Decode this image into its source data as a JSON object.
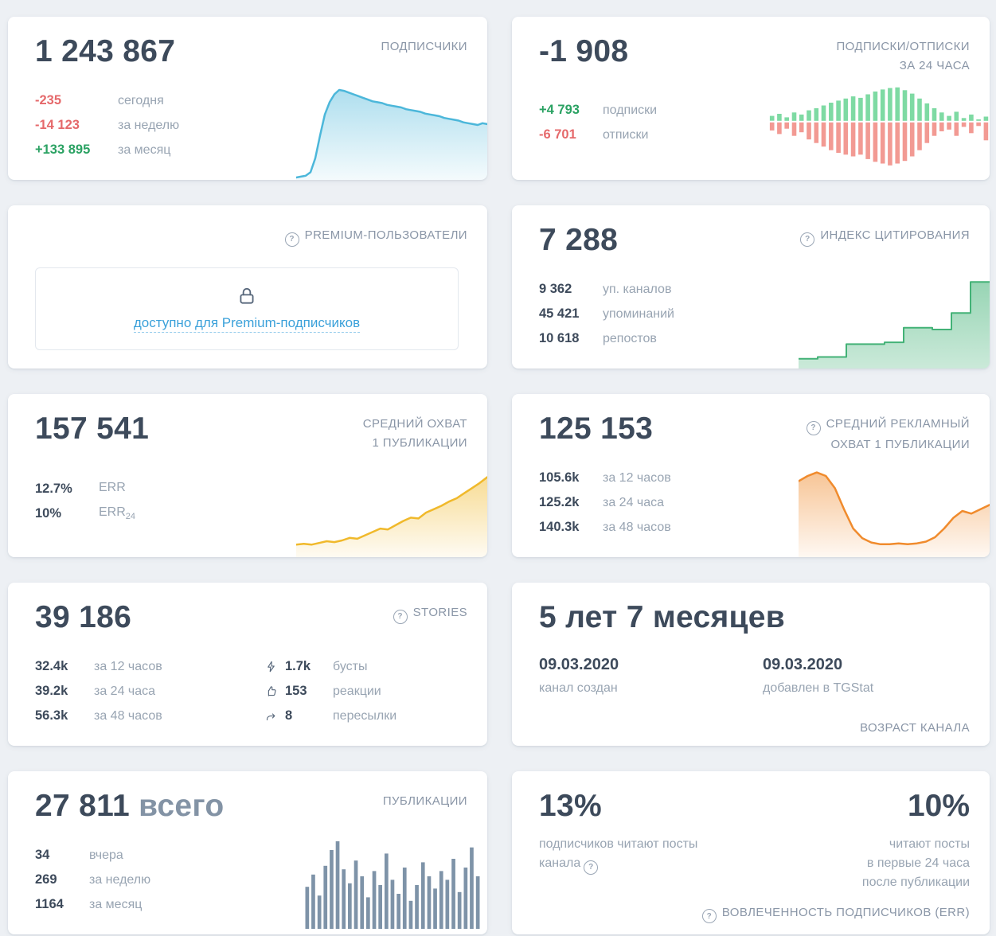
{
  "subscribers": {
    "title": "ПОДПИСЧИКИ",
    "value": "1 243 867",
    "stats": [
      {
        "value": "-235",
        "label": "сегодня"
      },
      {
        "value": "-14 123",
        "label": "за неделю"
      },
      {
        "value": "+133 895",
        "label": "за месяц"
      }
    ]
  },
  "subs_unsubs": {
    "title_line1": "ПОДПИСКИ/ОТПИСКИ",
    "title_line2": "ЗА 24 ЧАСА",
    "value": "-1 908",
    "stats": [
      {
        "value": "+4 793",
        "label": "подписки"
      },
      {
        "value": "-6 701",
        "label": "отписки"
      }
    ]
  },
  "premium": {
    "title": "PREMIUM-ПОЛЬЗОВАТЕЛИ",
    "locked_text": "доступно для Premium-подписчиков"
  },
  "citation": {
    "title": "ИНДЕКС ЦИТИРОВАНИЯ",
    "value": "7 288",
    "stats": [
      {
        "value": "9 362",
        "label": "уп. каналов"
      },
      {
        "value": "45 421",
        "label": "упоминаний"
      },
      {
        "value": "10 618",
        "label": "репостов"
      }
    ]
  },
  "avg_reach": {
    "title_line1": "СРЕДНИЙ ОХВАТ",
    "title_line2": "1 ПУБЛИКАЦИИ",
    "value": "157 541",
    "stats": [
      {
        "value": "12.7%",
        "label": "ERR",
        "label_sub": ""
      },
      {
        "value": "10%",
        "label": "ERR",
        "label_sub": "24"
      }
    ]
  },
  "ad_reach": {
    "title_line1": "СРЕДНИЙ РЕКЛАМНЫЙ",
    "title_line2": "ОХВАТ 1 ПУБЛИКАЦИИ",
    "value": "125 153",
    "stats": [
      {
        "value": "105.6k",
        "label": "за 12 часов"
      },
      {
        "value": "125.2k",
        "label": "за 24 часа"
      },
      {
        "value": "140.3k",
        "label": "за 48 часов"
      }
    ]
  },
  "stories": {
    "title": "STORIES",
    "value": "39 186",
    "stats_left": [
      {
        "value": "32.4k",
        "label": "за 12 часов"
      },
      {
        "value": "39.2k",
        "label": "за 24 часа"
      },
      {
        "value": "56.3k",
        "label": "за 48 часов"
      }
    ],
    "stats_right": [
      {
        "icon": "boost-icon",
        "value": "1.7k",
        "label": "бусты"
      },
      {
        "icon": "like-icon",
        "value": "153",
        "label": "реакции"
      },
      {
        "icon": "forward-icon",
        "value": "8",
        "label": "пересылки"
      }
    ]
  },
  "age": {
    "value": "5 лет 7 месяцев",
    "created": {
      "date": "09.03.2020",
      "label": "канал создан"
    },
    "added": {
      "date": "09.03.2020",
      "label": "добавлен в TGStat"
    },
    "footer": "ВОЗРАСТ КАНАЛА"
  },
  "publications": {
    "title": "ПУБЛИКАЦИИ",
    "value": "27 811",
    "suffix": "всего",
    "stats": [
      {
        "value": "34",
        "label": "вчера"
      },
      {
        "value": "269",
        "label": "за неделю"
      },
      {
        "value": "1164",
        "label": "за месяц"
      }
    ]
  },
  "engagement": {
    "left": {
      "value": "13%",
      "label": "подписчиков читают посты канала"
    },
    "right": {
      "value": "10%",
      "lines": [
        "читают посты",
        "в первые 24 часа",
        "после публикации"
      ]
    },
    "footer": "ВОВЛЕЧЕННОСТЬ ПОДПИСЧИКОВ (ERR)"
  },
  "chart_data": {
    "subscribers_trend": {
      "type": "area",
      "color": "#4cb7da",
      "fill_top": 0.45,
      "fill_bottom": 0.06,
      "stroke_width": 2.5,
      "values": [
        0,
        1,
        2,
        6,
        22,
        48,
        72,
        86,
        95,
        100,
        99,
        97,
        95,
        93,
        91,
        89,
        87,
        86,
        85,
        83,
        82,
        81,
        80,
        78,
        77,
        76,
        75,
        73,
        72,
        71,
        70,
        68,
        67,
        66,
        65,
        63,
        62,
        61,
        60,
        62,
        61
      ]
    },
    "subs_unsubs_24h": {
      "type": "diverging-bars",
      "up_color": "#7edaa3",
      "down_color": "#f29a93",
      "up": [
        14,
        20,
        10,
        24,
        18,
        30,
        36,
        44,
        52,
        58,
        64,
        70,
        66,
        76,
        84,
        90,
        94,
        96,
        88,
        78,
        64,
        50,
        36,
        24,
        14,
        26,
        8,
        18,
        4,
        12
      ],
      "down": [
        18,
        26,
        14,
        30,
        22,
        38,
        46,
        54,
        62,
        68,
        72,
        76,
        72,
        82,
        88,
        92,
        96,
        92,
        86,
        76,
        62,
        46,
        30,
        20,
        16,
        30,
        10,
        24,
        8,
        40
      ]
    },
    "citation_index": {
      "type": "step-area",
      "color": "#43b277",
      "fill_top": 0.55,
      "fill_bottom": 0.28,
      "stroke_width": 2,
      "values": [
        8,
        8,
        10,
        10,
        10,
        24,
        24,
        24,
        24,
        26,
        26,
        42,
        42,
        42,
        40,
        40,
        58,
        58,
        92,
        92,
        92
      ]
    },
    "avg_reach_trend": {
      "type": "area",
      "color": "#f0b92b",
      "fill_top": 0.5,
      "fill_bottom": 0.06,
      "stroke_width": 2.5,
      "values": [
        12,
        13,
        12,
        14,
        16,
        15,
        17,
        20,
        19,
        23,
        27,
        31,
        30,
        35,
        40,
        44,
        43,
        50,
        54,
        58,
        63,
        67,
        73,
        79,
        85,
        92
      ]
    },
    "ad_reach_trend": {
      "type": "area",
      "color": "#f08b2d",
      "fill_top": 0.5,
      "fill_bottom": 0.06,
      "stroke_width": 2.5,
      "values": [
        84,
        90,
        94,
        90,
        76,
        52,
        30,
        19,
        14,
        12,
        12,
        13,
        12,
        13,
        15,
        20,
        30,
        42,
        50,
        47,
        52,
        57
      ]
    },
    "publications_bars": {
      "type": "bars",
      "color": "#7e93a8",
      "values": [
        48,
        62,
        38,
        72,
        90,
        100,
        68,
        52,
        78,
        60,
        36,
        66,
        50,
        86,
        56,
        40,
        70,
        32,
        50,
        76,
        60,
        46,
        66,
        56,
        80,
        42,
        70,
        93,
        60
      ]
    }
  }
}
